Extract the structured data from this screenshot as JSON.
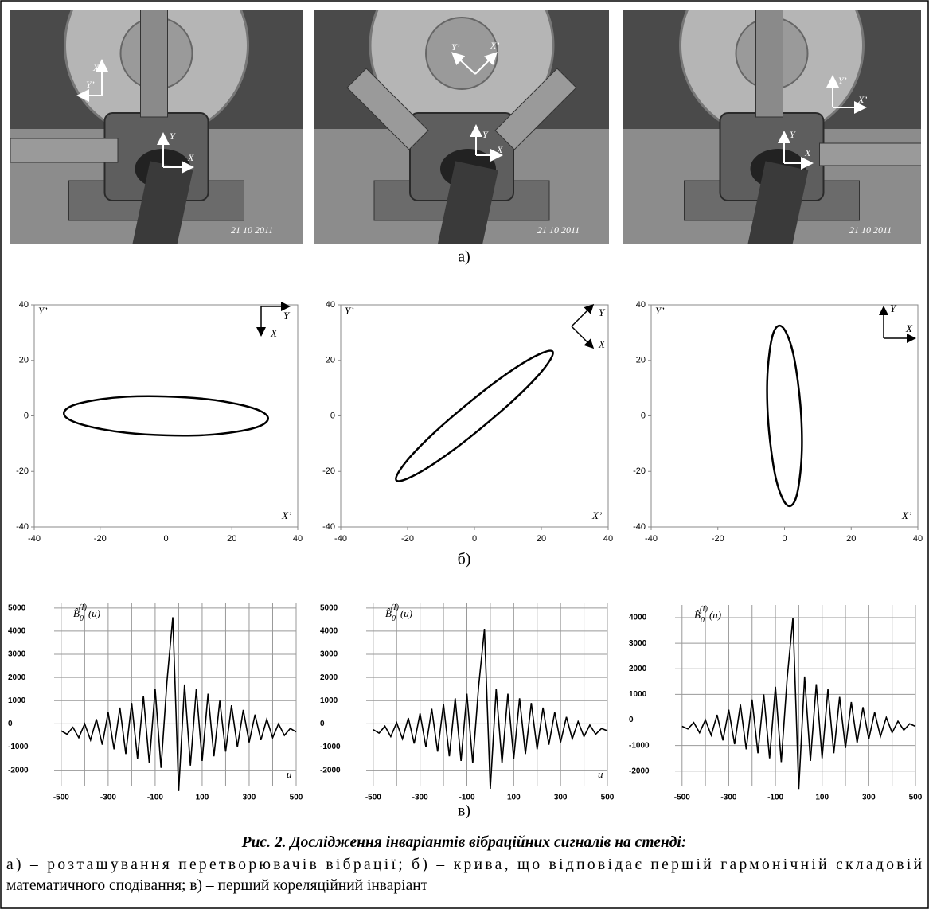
{
  "photos": [
    {
      "labels": [
        "X’",
        "Y’",
        "Y",
        "X"
      ],
      "date": "21 10 2011"
    },
    {
      "labels": [
        "Y’",
        "X’",
        "Y",
        "X"
      ],
      "date": "21 10 2011"
    },
    {
      "labels": [
        "Y’",
        "X’",
        "Y",
        "X"
      ],
      "date": "21 10 2011"
    }
  ],
  "panel_labels": [
    "а)",
    "б)",
    "в)"
  ],
  "chart_data": [
    {
      "type": "line",
      "smooth": true,
      "color": "#000000",
      "x": [
        31,
        28.6,
        21.9,
        11.9,
        0,
        -11.9,
        -21.9,
        -28.6,
        -31,
        -28.6,
        -21.9,
        -11.9,
        0,
        11.9,
        21.9,
        28.6,
        31
      ],
      "values": [
        -0.9,
        1.8,
        4.2,
        6.1,
        7,
        6.9,
        5.6,
        3.6,
        0.9,
        -1.8,
        -4.2,
        -6.1,
        -7,
        -6.9,
        -5.6,
        -3.6,
        -0.9
      ],
      "xlim": [
        -40,
        40
      ],
      "ylim": [
        -40,
        40
      ],
      "xticks": [
        -40,
        -20,
        0,
        20,
        40
      ],
      "yticks": [
        -40,
        -20,
        0,
        20,
        40
      ],
      "corner_labels": [
        "Y’",
        "X’"
      ],
      "inset_axes": [
        "Y",
        "X"
      ]
    },
    {
      "type": "line",
      "smooth": true,
      "color": "#000000",
      "x": [
        23.3,
        20.3,
        14.2,
        5.9,
        -3.2,
        -11.9,
        -18.8,
        -22.7,
        -23.3,
        -20.3,
        -14.2,
        -5.9,
        3.2,
        11.9,
        18.8,
        22.7,
        23.3
      ],
      "values": [
        23.3,
        22.7,
        18.8,
        11.9,
        3.2,
        -5.9,
        -14.2,
        -20.3,
        -23.3,
        -22.7,
        -18.8,
        -11.9,
        -3.2,
        5.9,
        14.2,
        20.3,
        23.3
      ],
      "xlim": [
        -40,
        40
      ],
      "ylim": [
        -40,
        40
      ],
      "xticks": [
        -40,
        -20,
        0,
        20,
        40
      ],
      "yticks": [
        -40,
        -20,
        0,
        20,
        40
      ],
      "corner_labels": [
        "Y’",
        "X’"
      ],
      "inset_axes": [
        "Y",
        "X"
      ]
    },
    {
      "type": "line",
      "smooth": true,
      "color": "#000000",
      "x": [
        -1.5,
        0.5,
        2.5,
        4.0,
        5,
        5.2,
        4.5,
        3.3,
        1.5,
        -0.5,
        -2.5,
        -4.0,
        -5,
        -5.2,
        -4.5,
        -3.3,
        -1.5
      ],
      "values": [
        32.5,
        30.0,
        23.0,
        12.4,
        0,
        -12.4,
        -23.0,
        -30.0,
        -32.5,
        -30.0,
        -23.0,
        -12.4,
        0,
        12.4,
        23.0,
        30.0,
        32.5
      ],
      "xlim": [
        -40,
        40
      ],
      "ylim": [
        -40,
        40
      ],
      "xticks": [
        -40,
        -20,
        0,
        20,
        40
      ],
      "yticks": [
        -40,
        -20,
        0,
        20,
        40
      ],
      "corner_labels": [
        "Y’",
        "X’"
      ],
      "inset_axes": [
        "Y",
        "X"
      ]
    },
    {
      "type": "line",
      "smooth": false,
      "color": "#000000",
      "x": [
        -500,
        -475,
        -450,
        -425,
        -400,
        -375,
        -350,
        -325,
        -300,
        -275,
        -250,
        -225,
        -200,
        -175,
        -150,
        -125,
        -100,
        -75,
        -50,
        -25,
        0,
        25,
        50,
        75,
        100,
        125,
        150,
        175,
        200,
        225,
        250,
        275,
        300,
        325,
        350,
        375,
        400,
        425,
        450,
        475,
        500
      ],
      "values": [
        -300,
        -450,
        -150,
        -600,
        0,
        -700,
        200,
        -900,
        500,
        -1100,
        700,
        -1300,
        900,
        -1500,
        1200,
        -1700,
        1500,
        -1900,
        1800,
        4600,
        -2900,
        1700,
        -1800,
        1500,
        -1600,
        1300,
        -1400,
        1000,
        -1200,
        800,
        -1000,
        600,
        -800,
        400,
        -700,
        200,
        -600,
        0,
        -500,
        -200,
        -350
      ],
      "xlim": [
        -530,
        500
      ],
      "ylim": [
        -2700,
        5200
      ],
      "xticks": [
        -500,
        -300,
        -100,
        100,
        300,
        500
      ],
      "xgrid": [
        -500,
        -400,
        -300,
        -200,
        -100,
        0,
        100,
        200,
        300,
        400,
        500
      ],
      "yticks": [
        -2000,
        -1000,
        0,
        1000,
        2000,
        3000,
        4000,
        5000
      ],
      "ylabel": {
        "symbol": "B̂",
        "sub": "0",
        "sup": "(I)",
        "arg": "(u)"
      },
      "xlabel": "u"
    },
    {
      "type": "line",
      "smooth": false,
      "color": "#000000",
      "x": [
        -500,
        -475,
        -450,
        -425,
        -400,
        -375,
        -350,
        -325,
        -300,
        -275,
        -250,
        -225,
        -200,
        -175,
        -150,
        -125,
        -100,
        -75,
        -50,
        -25,
        0,
        25,
        50,
        75,
        100,
        125,
        150,
        175,
        200,
        225,
        250,
        275,
        300,
        325,
        350,
        375,
        400,
        425,
        450,
        475,
        500
      ],
      "values": [
        -250,
        -400,
        -100,
        -550,
        50,
        -650,
        250,
        -850,
        450,
        -1000,
        650,
        -1200,
        850,
        -1400,
        1100,
        -1600,
        1300,
        -1700,
        1600,
        4100,
        -2800,
        1500,
        -1700,
        1300,
        -1500,
        1100,
        -1300,
        900,
        -1100,
        700,
        -900,
        500,
        -800,
        300,
        -650,
        100,
        -550,
        -50,
        -450,
        -200,
        -300
      ],
      "xlim": [
        -530,
        500
      ],
      "ylim": [
        -2700,
        5200
      ],
      "xticks": [
        -500,
        -300,
        -100,
        100,
        300,
        500
      ],
      "xgrid": [
        -500,
        -400,
        -300,
        -200,
        -100,
        0,
        100,
        200,
        300,
        400,
        500
      ],
      "yticks": [
        -2000,
        -1000,
        0,
        1000,
        2000,
        3000,
        4000,
        5000
      ],
      "ylabel": {
        "symbol": "B̂",
        "sub": "0",
        "sup": "(I)",
        "arg": "(u)"
      },
      "xlabel": "u"
    },
    {
      "type": "line",
      "smooth": false,
      "color": "#000000",
      "x": [
        -500,
        -475,
        -450,
        -425,
        -400,
        -375,
        -350,
        -325,
        -300,
        -275,
        -250,
        -225,
        -200,
        -175,
        -150,
        -125,
        -100,
        -75,
        -50,
        -25,
        0,
        25,
        50,
        75,
        100,
        125,
        150,
        175,
        200,
        225,
        250,
        275,
        300,
        325,
        350,
        375,
        400,
        425,
        450,
        475,
        500
      ],
      "values": [
        -250,
        -350,
        -100,
        -500,
        0,
        -600,
        200,
        -800,
        400,
        -950,
        600,
        -1150,
        800,
        -1300,
        1000,
        -1500,
        1300,
        -1650,
        1600,
        4000,
        -2700,
        1700,
        -1600,
        1400,
        -1500,
        1200,
        -1300,
        900,
        -1100,
        700,
        -900,
        500,
        -750,
        300,
        -650,
        100,
        -500,
        -50,
        -400,
        -150,
        -250
      ],
      "xlim": [
        -530,
        500
      ],
      "ylim": [
        -2600,
        4500
      ],
      "xticks": [
        -500,
        -300,
        -100,
        100,
        300,
        500
      ],
      "xgrid": [
        -500,
        -400,
        -300,
        -200,
        -100,
        0,
        100,
        200,
        300,
        400,
        500
      ],
      "yticks": [
        -2000,
        -1000,
        0,
        1000,
        2000,
        3000,
        4000
      ],
      "ylabel": {
        "symbol": "B̂",
        "sub": "0",
        "sup": "(I)",
        "arg": "(u)"
      }
    }
  ],
  "caption": {
    "title": "Рис. 2. Дослідження інваріантів вібраційних сигналів на стенді:",
    "lines": [
      "а) – розташування перетворювачів вібрації; б) – крива, що відповідає першій гармонічній складовій",
      "математичного сподівання; в) – перший кореляційний інваріант"
    ]
  }
}
